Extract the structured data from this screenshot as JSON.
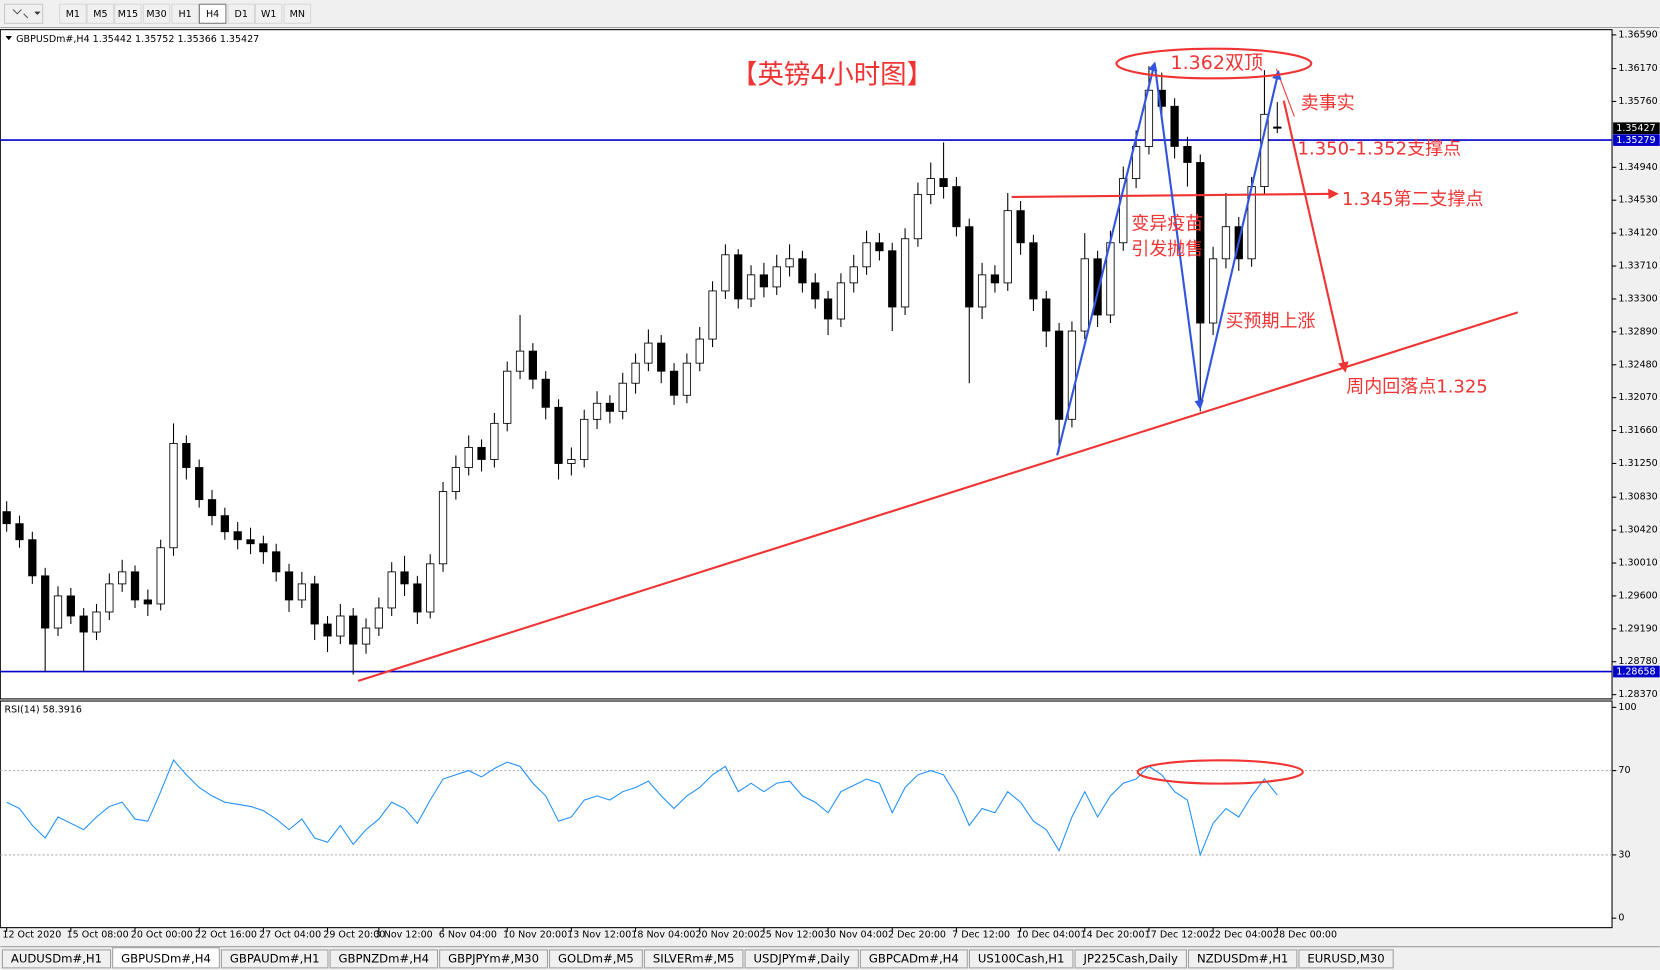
{
  "toolbar": {
    "timeframes": [
      "M1",
      "M5",
      "M15",
      "M30",
      "H1",
      "H4",
      "D1",
      "W1",
      "MN"
    ],
    "selected": 5
  },
  "chart_data": {
    "type": "candlestick",
    "symbol": "GBPUSDm#,H4",
    "categories": [
      "12 Oct 2020",
      null,
      null,
      null,
      null,
      "15 Oct 08:00",
      null,
      null,
      null,
      null,
      "20 Oct 00:00",
      null,
      null,
      null,
      null,
      "22 Oct 16:00",
      null,
      null,
      null,
      null,
      "27 Oct 04:00",
      null,
      null,
      null,
      null,
      "29 Oct 20:00",
      null,
      null,
      null,
      "3 Nov 12:00",
      null,
      null,
      null,
      null,
      "6 Nov 04:00",
      null,
      null,
      null,
      null,
      "10 Nov 20:00",
      null,
      null,
      null,
      null,
      "13 Nov 12:00",
      null,
      null,
      null,
      null,
      "18 Nov 04:00",
      null,
      null,
      null,
      null,
      "20 Nov 20:00",
      null,
      null,
      null,
      null,
      "25 Nov 12:00",
      null,
      null,
      null,
      null,
      "30 Nov 04:00",
      null,
      null,
      null,
      null,
      "2 Dec 20:00",
      null,
      null,
      null,
      null,
      "7 Dec 12:00",
      null,
      null,
      null,
      null,
      "10 Dec 04:00",
      null,
      null,
      null,
      null,
      "14 Dec 20:00",
      null,
      null,
      null,
      null,
      "17 Dec 12:00",
      null,
      null,
      null,
      null,
      "22 Dec 04:00",
      null,
      null,
      null,
      null,
      "28 Dec 00:00"
    ],
    "open": [
      1.3065,
      1.305,
      1.303,
      1.2985,
      1.292,
      1.296,
      1.2935,
      1.2915,
      1.294,
      1.2975,
      1.299,
      1.2955,
      1.295,
      1.302,
      1.315,
      1.312,
      1.308,
      1.306,
      1.304,
      1.303,
      1.3025,
      1.3015,
      1.299,
      1.2955,
      1.2975,
      1.2925,
      1.291,
      1.2935,
      1.29,
      1.292,
      1.2945,
      1.299,
      1.2975,
      1.294,
      1.3,
      1.309,
      1.312,
      1.3145,
      1.313,
      1.3175,
      1.324,
      1.3265,
      1.323,
      1.3195,
      1.3125,
      1.313,
      1.318,
      1.32,
      1.319,
      1.3225,
      1.325,
      1.3275,
      1.324,
      1.321,
      1.325,
      1.328,
      1.334,
      1.3385,
      1.333,
      1.336,
      1.3345,
      1.337,
      1.338,
      1.335,
      1.333,
      1.3305,
      1.335,
      1.337,
      1.34,
      1.339,
      1.332,
      1.3405,
      1.346,
      1.348,
      1.347,
      1.342,
      1.332,
      1.336,
      1.335,
      1.344,
      1.34,
      1.333,
      1.329,
      1.318,
      1.329,
      1.338,
      1.331,
      1.34,
      1.348,
      1.352,
      1.359,
      1.357,
      1.352,
      1.35,
      1.33,
      1.338,
      1.342,
      1.338,
      1.347,
      1.35442
    ],
    "high": [
      1.3078,
      1.306,
      1.304,
      1.2995,
      1.2972,
      1.297,
      1.2945,
      1.295,
      1.2988,
      1.3005,
      1.2998,
      1.2968,
      1.303,
      1.3175,
      1.316,
      1.313,
      1.3092,
      1.307,
      1.3052,
      1.3045,
      1.3035,
      1.3025,
      1.3,
      1.299,
      1.2985,
      1.2935,
      1.295,
      1.2945,
      1.2932,
      1.2958,
      1.3002,
      1.301,
      1.2985,
      1.3012,
      1.3102,
      1.3135,
      1.316,
      1.3155,
      1.3188,
      1.3252,
      1.331,
      1.3275,
      1.324,
      1.3205,
      1.3145,
      1.3192,
      1.3215,
      1.321,
      1.3238,
      1.3262,
      1.3292,
      1.3285,
      1.325,
      1.3262,
      1.3295,
      1.3352,
      1.3398,
      1.3392,
      1.3372,
      1.3375,
      1.3385,
      1.3398,
      1.339,
      1.3362,
      1.334,
      1.3362,
      1.3385,
      1.3415,
      1.3412,
      1.34,
      1.3418,
      1.3475,
      1.35,
      1.3525,
      1.3482,
      1.343,
      1.3375,
      1.3372,
      1.3462,
      1.3452,
      1.341,
      1.334,
      1.33,
      1.3302,
      1.3412,
      1.339,
      1.3415,
      1.3495,
      1.354,
      1.362,
      1.3612,
      1.358,
      1.3532,
      1.351,
      1.3395,
      1.3462,
      1.3432,
      1.3482,
      1.3615,
      1.35752
    ],
    "low": [
      1.304,
      1.302,
      1.2975,
      1.2866,
      1.291,
      1.2925,
      1.2866,
      1.2905,
      1.293,
      1.2965,
      1.2945,
      1.2935,
      1.2942,
      1.301,
      1.3105,
      1.307,
      1.3048,
      1.303,
      1.3018,
      1.3012,
      1.3,
      1.2978,
      1.294,
      1.2945,
      1.2905,
      1.289,
      1.29,
      1.2862,
      1.2888,
      1.291,
      1.2935,
      1.296,
      1.2925,
      1.2932,
      1.299,
      1.308,
      1.311,
      1.3115,
      1.312,
      1.3165,
      1.323,
      1.3218,
      1.318,
      1.3105,
      1.311,
      1.312,
      1.3168,
      1.3175,
      1.318,
      1.3212,
      1.324,
      1.3225,
      1.3198,
      1.32,
      1.324,
      1.327,
      1.333,
      1.3318,
      1.332,
      1.3332,
      1.3335,
      1.3358,
      1.3338,
      1.3318,
      1.3285,
      1.3295,
      1.3338,
      1.336,
      1.3378,
      1.329,
      1.331,
      1.3395,
      1.3448,
      1.3455,
      1.3408,
      1.3225,
      1.3305,
      1.3338,
      1.334,
      1.3385,
      1.3315,
      1.327,
      1.314,
      1.317,
      1.328,
      1.3295,
      1.33,
      1.339,
      1.3468,
      1.351,
      1.3555,
      1.3505,
      1.347,
      1.319,
      1.3285,
      1.3368,
      1.3365,
      1.337,
      1.346,
      1.35366
    ],
    "close": [
      1.305,
      1.303,
      1.2985,
      1.292,
      1.296,
      1.2935,
      1.2915,
      1.294,
      1.2975,
      1.299,
      1.2955,
      1.295,
      1.302,
      1.315,
      1.312,
      1.308,
      1.306,
      1.304,
      1.303,
      1.3025,
      1.3015,
      1.299,
      1.2955,
      1.2975,
      1.2925,
      1.291,
      1.2935,
      1.29,
      1.292,
      1.2945,
      1.299,
      1.2975,
      1.294,
      1.3,
      1.309,
      1.312,
      1.3145,
      1.313,
      1.3175,
      1.324,
      1.3265,
      1.323,
      1.3195,
      1.3125,
      1.313,
      1.318,
      1.32,
      1.319,
      1.3225,
      1.325,
      1.3275,
      1.324,
      1.321,
      1.325,
      1.328,
      1.334,
      1.3385,
      1.333,
      1.336,
      1.3345,
      1.337,
      1.338,
      1.335,
      1.333,
      1.3305,
      1.335,
      1.337,
      1.34,
      1.339,
      1.332,
      1.3405,
      1.346,
      1.348,
      1.347,
      1.342,
      1.332,
      1.336,
      1.335,
      1.344,
      1.34,
      1.333,
      1.329,
      1.318,
      1.329,
      1.338,
      1.331,
      1.34,
      1.348,
      1.352,
      1.359,
      1.357,
      1.352,
      1.35,
      1.33,
      1.338,
      1.342,
      1.338,
      1.347,
      1.356,
      1.35427
    ],
    "up_color": "#ffffff",
    "down_color": "#000000",
    "wick_color": "#000000",
    "ylim": [
      1.28317,
      1.36655
    ],
    "yticks": [
      {
        "value": 1.3659,
        "label": "1.36590"
      },
      {
        "value": 1.3617,
        "label": "1.36170"
      },
      {
        "value": 1.3576,
        "label": "1.35760"
      },
      {
        "value": 1.3494,
        "label": "1.34940"
      },
      {
        "value": 1.3453,
        "label": "1.34530"
      },
      {
        "value": 1.3412,
        "label": "1.34120"
      },
      {
        "value": 1.3371,
        "label": "1.33710"
      },
      {
        "value": 1.333,
        "label": "1.33300"
      },
      {
        "value": 1.3289,
        "label": "1.32890"
      },
      {
        "value": 1.3248,
        "label": "1.32480"
      },
      {
        "value": 1.3207,
        "label": "1.32070"
      },
      {
        "value": 1.3166,
        "label": "1.31660"
      },
      {
        "value": 1.3125,
        "label": "1.31250"
      },
      {
        "value": 1.3083,
        "label": "1.30830"
      },
      {
        "value": 1.3042,
        "label": "1.30420"
      },
      {
        "value": 1.3001,
        "label": "1.30010"
      },
      {
        "value": 1.296,
        "label": "1.29600"
      },
      {
        "value": 1.2919,
        "label": "1.29190"
      },
      {
        "value": 1.2878,
        "label": "1.28780"
      },
      {
        "value": 1.2837,
        "label": "1.28370"
      }
    ],
    "price_lines": [
      {
        "value": 1.35279,
        "color": "#0000c8"
      },
      {
        "value": 1.28658,
        "color": "#0000c8"
      }
    ],
    "annotations": [
      "【英镑4小时图】",
      "1.362双顶",
      "卖事实",
      "1.350-1.352支撑点",
      "1.345第二支撑点",
      "变异疫苗",
      "引发抛售",
      "买预期上涨",
      "周内回落点1.325"
    ],
    "rsi": {
      "name": "RSI(14)",
      "color": "#1e90ff",
      "ylim": [
        -4.5,
        103
      ],
      "yticks": [
        100,
        70,
        30,
        0
      ],
      "levels": [
        70,
        30
      ],
      "values": [
        55,
        52,
        44,
        38,
        48,
        45,
        42,
        48,
        53,
        55,
        47,
        46,
        60,
        75,
        68,
        62,
        58,
        55,
        54,
        53,
        51,
        47,
        42,
        47,
        38,
        36,
        44,
        35,
        42,
        47,
        55,
        52,
        45,
        56,
        66,
        68,
        70,
        67,
        71,
        74,
        72,
        64,
        58,
        46,
        48,
        56,
        58,
        56,
        60,
        62,
        65,
        58,
        52,
        58,
        62,
        68,
        72,
        60,
        64,
        60,
        64,
        65,
        58,
        55,
        50,
        60,
        63,
        66,
        64,
        50,
        62,
        68,
        70,
        68,
        58,
        44,
        52,
        50,
        60,
        55,
        46,
        42,
        32,
        48,
        60,
        48,
        58,
        64,
        66,
        72,
        68,
        60,
        56,
        30,
        45,
        52,
        48,
        58,
        66,
        58.3916
      ]
    }
  },
  "tabs": {
    "items": [
      "AUDUSDm#,H1",
      "GBPUSDm#,H4",
      "GBPAUDm#,H1",
      "GBPNZDm#,H4",
      "GBPJPYm#,M30",
      "GOLDm#,M5",
      "SILVERm#,M5",
      "USDJPYm#,Daily",
      "GBPCADm#,H4",
      "US100Cash,H1",
      "JP225Cash,Daily",
      "NZDUSDm#,H1",
      "EURUSD,M30"
    ],
    "selected": 1
  }
}
